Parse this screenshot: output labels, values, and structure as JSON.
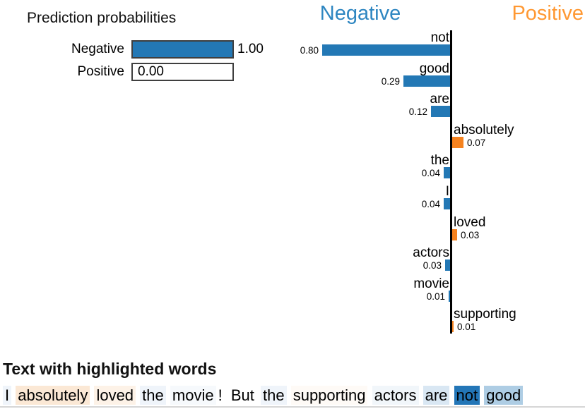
{
  "prediction": {
    "title": "Prediction probabilities",
    "bars": [
      {
        "label": "Negative",
        "value_text": "1.00",
        "fraction": 1.0,
        "color": "#2378b5"
      },
      {
        "label": "Positive",
        "value_text": "0.00",
        "fraction": 0.0,
        "color": "#f5821f"
      }
    ]
  },
  "chart_data": {
    "type": "bar",
    "orientation": "horizontal-diverging",
    "left_class": {
      "label": "Negative",
      "color": "#2e86c1"
    },
    "right_class": {
      "label": "Positive",
      "color": "#ff9832"
    },
    "bar_colors": {
      "Negative": "#2378b5",
      "Positive": "#f5821f"
    },
    "xlim": [
      -0.85,
      0.85
    ],
    "features": [
      {
        "word": "not",
        "weight": 0.8,
        "value_text": "0.80",
        "class": "Negative"
      },
      {
        "word": "good",
        "weight": 0.29,
        "value_text": "0.29",
        "class": "Negative"
      },
      {
        "word": "are",
        "weight": 0.12,
        "value_text": "0.12",
        "class": "Negative"
      },
      {
        "word": "absolutely",
        "weight": 0.07,
        "value_text": "0.07",
        "class": "Positive"
      },
      {
        "word": "the",
        "weight": 0.04,
        "value_text": "0.04",
        "class": "Negative"
      },
      {
        "word": "I",
        "weight": 0.04,
        "value_text": "0.04",
        "class": "Negative"
      },
      {
        "word": "loved",
        "weight": 0.03,
        "value_text": "0.03",
        "class": "Positive"
      },
      {
        "word": "actors",
        "weight": 0.03,
        "value_text": "0.03",
        "class": "Negative"
      },
      {
        "word": "movie",
        "weight": 0.01,
        "value_text": "0.01",
        "class": "Negative"
      },
      {
        "word": "supporting",
        "weight": 0.01,
        "value_text": "0.01",
        "class": "Positive"
      }
    ]
  },
  "highlighted_text": {
    "title": "Text with highlighted words",
    "sentence": "I absolutely loved the movie! But the supporting actors are not good",
    "tokens": [
      {
        "text": "I",
        "bg": "#eff4fa"
      },
      {
        "text": "absolutely",
        "bg": "#fbe8d5"
      },
      {
        "text": "loved",
        "bg": "#fdf2e7"
      },
      {
        "text": "the",
        "bg": "#eff4fa"
      },
      {
        "text": "movie",
        "bg": "#f6f9fc"
      },
      {
        "text": "!",
        "bg": null,
        "attach": true
      },
      {
        "text": "But",
        "bg": null
      },
      {
        "text": "the",
        "bg": "#eff4fa"
      },
      {
        "text": "supporting",
        "bg": "#fefaf6"
      },
      {
        "text": "actors",
        "bg": "#f1f6fa"
      },
      {
        "text": "are",
        "bg": "#d9e7f3"
      },
      {
        "text": "not",
        "bg": "#2376b7"
      },
      {
        "text": "good",
        "bg": "#aecde4"
      }
    ]
  }
}
